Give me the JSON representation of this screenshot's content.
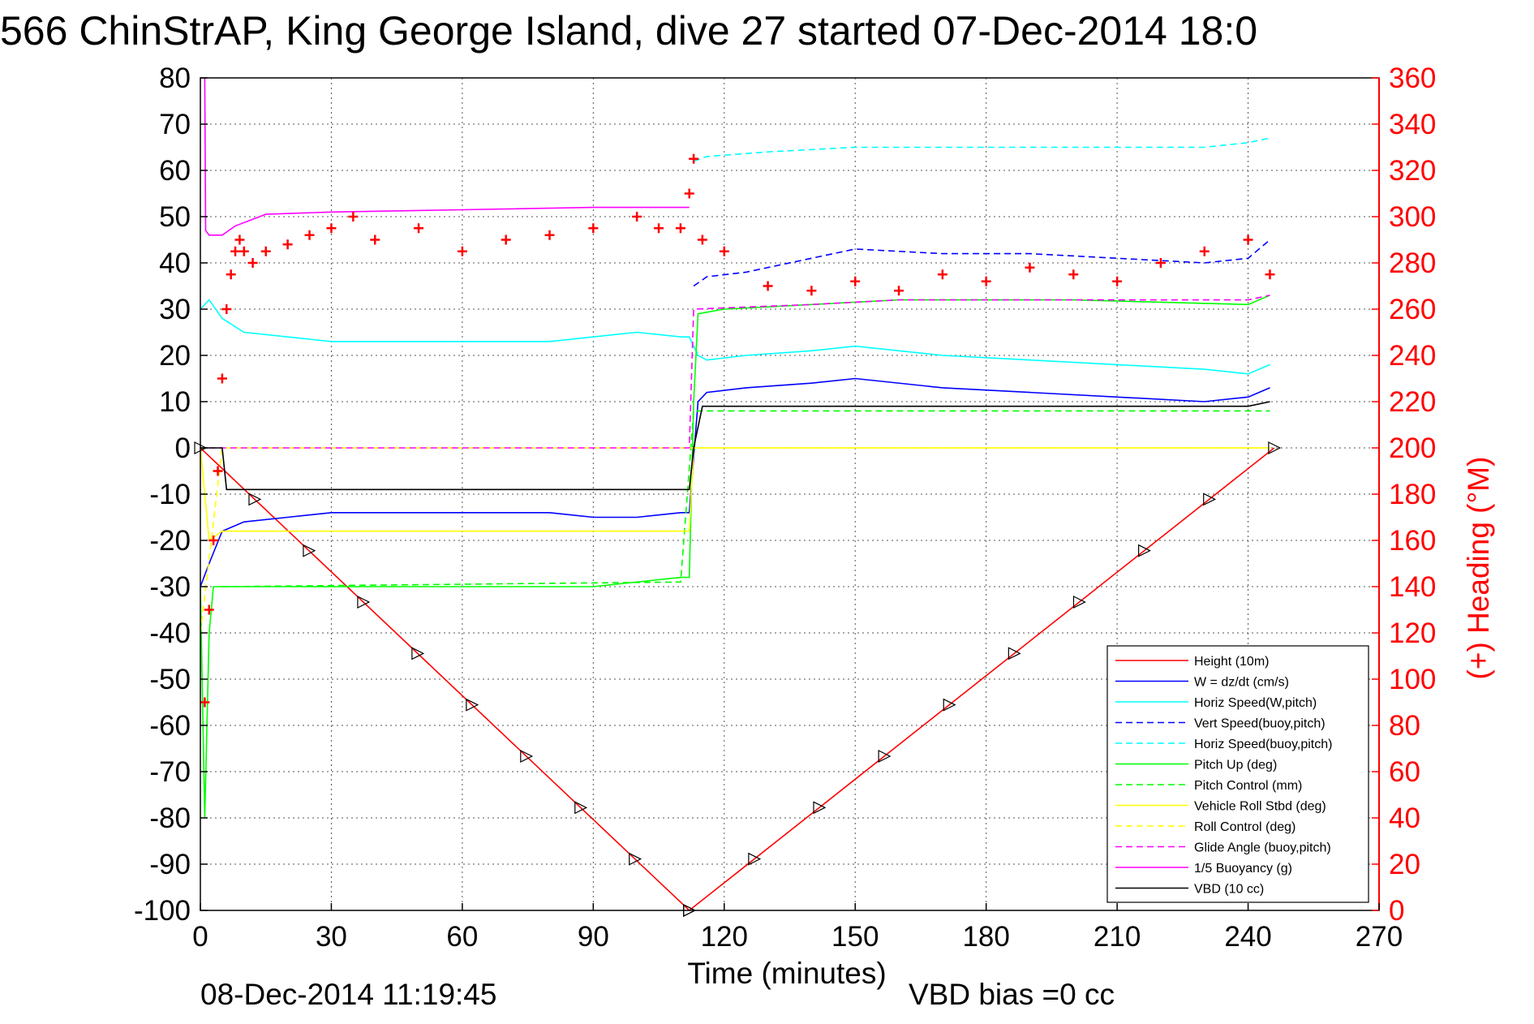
{
  "chart_data": {
    "type": "line",
    "title": "566 ChinStrAP, King George Island, dive 27 started 07-Dec-2014 18:0",
    "xlabel": "Time (minutes)",
    "ylabel": "",
    "ylabel_right": "(+) Heading (°M)",
    "xlim": [
      0,
      270
    ],
    "ylim": [
      -100,
      80
    ],
    "ylim_right": [
      0,
      360
    ],
    "x_ticks": [
      "0",
      "30",
      "60",
      "90",
      "120",
      "150",
      "180",
      "210",
      "240",
      "270"
    ],
    "y_ticks": [
      "80",
      "70",
      "60",
      "50",
      "40",
      "30",
      "20",
      "10",
      "0",
      "-10",
      "-20",
      "-30",
      "-40",
      "-50",
      "-60",
      "-70",
      "-80",
      "-90",
      "-100"
    ],
    "y_right_ticks": [
      "360",
      "340",
      "320",
      "300",
      "280",
      "260",
      "240",
      "220",
      "200",
      "180",
      "160",
      "140",
      "120",
      "100",
      "80",
      "60",
      "40",
      "20",
      "0"
    ],
    "grid": true,
    "legend_position": "bottom-right",
    "footer_left": "08-Dec-2014 11:19:45",
    "footer_right": "VBD bias =0 cc",
    "heading_colour": "#ff0000",
    "series": [
      {
        "name": "Height (10m)",
        "color": "#ff0000",
        "style": "solid",
        "x": [
          0,
          112,
          246
        ],
        "y": [
          0,
          -100,
          0
        ]
      },
      {
        "name": "W = dz/dt (cm/s)",
        "color": "#0000ff",
        "style": "solid",
        "x": [
          0,
          2,
          5,
          10,
          20,
          30,
          40,
          60,
          80,
          90,
          100,
          110,
          112,
          114,
          116,
          125,
          140,
          150,
          170,
          190,
          210,
          230,
          240,
          245
        ],
        "y": [
          -30,
          -25,
          -18,
          -16,
          -15,
          -14,
          -14,
          -14,
          -14,
          -15,
          -15,
          -14,
          -14,
          10,
          12,
          13,
          14,
          15,
          13,
          12,
          11,
          10,
          11,
          13
        ]
      },
      {
        "name": "Horiz Speed(W,pitch)",
        "color": "#00ffff",
        "style": "solid",
        "x": [
          0,
          2,
          5,
          10,
          20,
          30,
          40,
          60,
          80,
          90,
          100,
          110,
          112,
          114,
          116,
          125,
          140,
          150,
          170,
          190,
          210,
          230,
          240,
          245
        ],
        "y": [
          30,
          32,
          28,
          25,
          24,
          23,
          23,
          23,
          23,
          24,
          25,
          24,
          24,
          20,
          19,
          20,
          21,
          22,
          20,
          19,
          18,
          17,
          16,
          18
        ]
      },
      {
        "name": "Vert Speed(buoy,pitch)",
        "color": "#0000ff",
        "style": "dashed",
        "x": [
          113,
          116,
          125,
          140,
          150,
          170,
          190,
          210,
          230,
          240,
          245
        ],
        "y": [
          35,
          37,
          38,
          41,
          43,
          42,
          42,
          41,
          40,
          41,
          45
        ]
      },
      {
        "name": "Horiz Speed(buoy,pitch)",
        "color": "#00ffff",
        "style": "dashed",
        "x": [
          113,
          116,
          130,
          150,
          170,
          190,
          210,
          230,
          240,
          245
        ],
        "y": [
          62,
          63,
          64,
          65,
          65,
          65,
          65,
          65,
          66,
          67
        ]
      },
      {
        "name": "Pitch Up (deg)",
        "color": "#00ff00",
        "style": "solid",
        "x": [
          0,
          1,
          2,
          3,
          5,
          10,
          20,
          30,
          60,
          90,
          110,
          112,
          113,
          114,
          120,
          140,
          160,
          200,
          240,
          245
        ],
        "y": [
          -30,
          -80,
          -40,
          -30,
          -30,
          -30,
          -30,
          -30,
          -30,
          -30,
          -28,
          -28,
          10,
          29,
          30,
          31,
          32,
          32,
          31,
          33
        ]
      },
      {
        "name": "Pitch Control (mm)",
        "color": "#00ff00",
        "style": "dashed",
        "x": [
          5,
          110,
          113,
          245
        ],
        "y": [
          -30,
          -29,
          8,
          8
        ]
      },
      {
        "name": "Vehicle Roll Stbd (deg)",
        "color": "#ffff00",
        "style": "solid",
        "x": [
          0,
          2,
          5,
          112,
          113,
          245
        ],
        "y": [
          0,
          -20,
          -18,
          -18,
          0,
          0
        ]
      },
      {
        "name": "Roll Control (deg)",
        "color": "#ffff00",
        "style": "dashed",
        "x": [
          0,
          5,
          112,
          113,
          245
        ],
        "y": [
          -40,
          0,
          0,
          0,
          0
        ]
      },
      {
        "name": "Glide Angle (buoy,pitch)",
        "color": "#ff00ff",
        "style": "dashed",
        "x": [
          2,
          112,
          113,
          140,
          160,
          200,
          240,
          245
        ],
        "y": [
          0,
          0,
          30,
          31,
          32,
          32,
          32,
          33
        ]
      },
      {
        "name": "1/5 Buoyancy (g)",
        "color": "#ff00ff",
        "style": "solid",
        "x": [
          1,
          1.2,
          2,
          5,
          8,
          15,
          30,
          60,
          90,
          110,
          112
        ],
        "y": [
          80,
          47,
          46,
          46,
          48,
          50.5,
          51,
          51.5,
          52,
          52,
          52
        ]
      },
      {
        "name": "VBD (10 cc)",
        "color": "#000000",
        "style": "solid",
        "x": [
          0,
          5,
          6,
          112,
          113,
          115,
          130,
          200,
          240,
          245
        ],
        "y": [
          0,
          0,
          -9,
          -9,
          0,
          9,
          9,
          9,
          9,
          10
        ]
      },
      {
        "name": "Heading",
        "axis": "right",
        "color": "#ff0000",
        "style": "markers",
        "x": [
          1,
          2,
          3,
          4,
          5,
          6,
          7,
          8,
          9,
          10,
          12,
          15,
          20,
          25,
          30,
          35,
          40,
          50,
          60,
          70,
          80,
          90,
          100,
          105,
          110,
          112,
          113,
          115,
          120,
          130,
          140,
          150,
          160,
          170,
          180,
          190,
          200,
          210,
          220,
          230,
          240,
          245
        ],
        "y": [
          90,
          130,
          160,
          190,
          230,
          260,
          275,
          285,
          290,
          285,
          280,
          285,
          288,
          292,
          295,
          300,
          290,
          295,
          285,
          290,
          292,
          295,
          300,
          295,
          295,
          310,
          325,
          290,
          285,
          270,
          268,
          272,
          268,
          275,
          272,
          278,
          275,
          272,
          280,
          285,
          290,
          275
        ]
      }
    ]
  }
}
